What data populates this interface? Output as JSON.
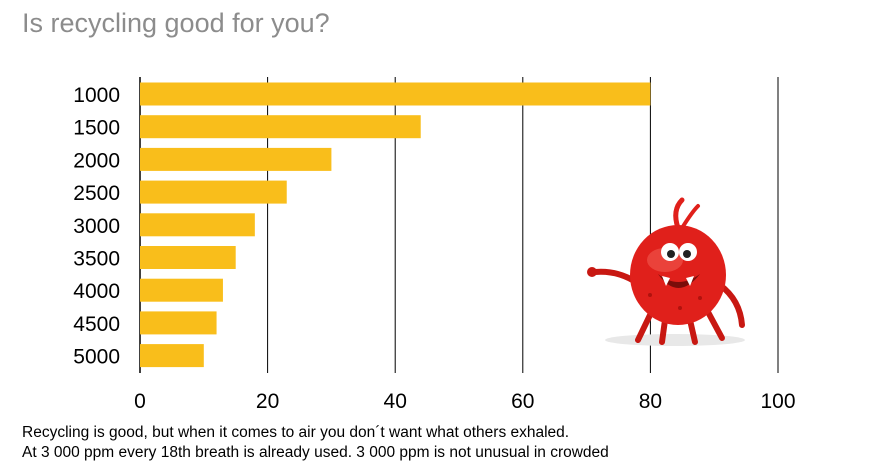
{
  "title": "Is recycling good for you?",
  "caption": [
    "Recycling is good, but when it comes to air you don´t want what others exhaled.",
    "At 3 000 ppm every 18th breath is already used. 3 000 ppm is not unusual in crowded"
  ],
  "chart_data": {
    "type": "bar",
    "orientation": "horizontal",
    "categories": [
      "1000",
      "1500",
      "2000",
      "2500",
      "3000",
      "3500",
      "4000",
      "4500",
      "5000"
    ],
    "values": [
      80,
      44,
      30,
      23,
      18,
      15,
      13,
      12,
      10
    ],
    "xlim": [
      0,
      100
    ],
    "xticks": [
      0,
      20,
      40,
      60,
      80,
      100
    ],
    "grid": "vertical",
    "bar_color": "#F9BE1B",
    "xlabel": "",
    "ylabel": ""
  },
  "illustration": {
    "icon": "red-germ-monster-icon",
    "body_color": "#E0201B"
  }
}
